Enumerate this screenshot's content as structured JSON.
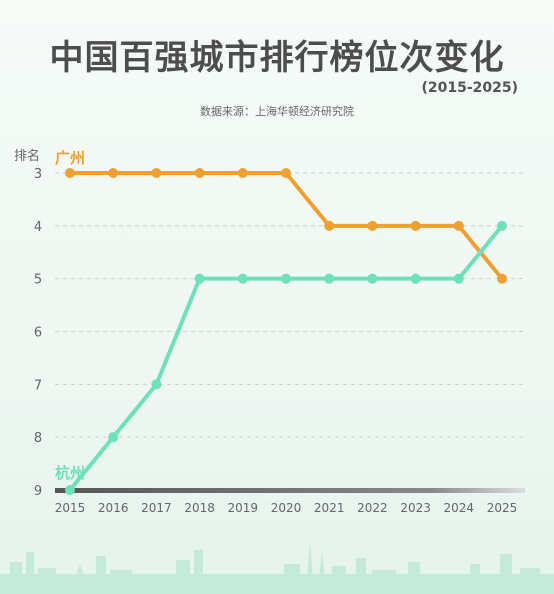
{
  "title": "中国百强城市排行榜位次变化",
  "subtitle_years": "(2015-2025)",
  "source": "数据来源：上海华顿经济研究院",
  "colors": {
    "guangzhou": "#f0a030",
    "hangzhou": "#6ee0bc",
    "title": "#4d4d4d",
    "grid": "#c9d6d0",
    "axis": "#666666"
  },
  "chart_data": {
    "type": "line",
    "ylabel": "排名",
    "y_inverted": true,
    "ylim": [
      3,
      9
    ],
    "y_ticks": [
      3,
      4,
      5,
      6,
      7,
      8,
      9
    ],
    "x": [
      2015,
      2016,
      2017,
      2018,
      2019,
      2020,
      2021,
      2022,
      2023,
      2024,
      2025
    ],
    "grid": "horizontal-dashed",
    "series": [
      {
        "name": "广州",
        "color": "#f0a030",
        "values": [
          3,
          3,
          3,
          3,
          3,
          3,
          4,
          4,
          4,
          4,
          5
        ]
      },
      {
        "name": "杭州",
        "color": "#6ee0bc",
        "values": [
          9,
          8,
          7,
          5,
          5,
          5,
          5,
          5,
          5,
          5,
          4
        ]
      }
    ]
  }
}
